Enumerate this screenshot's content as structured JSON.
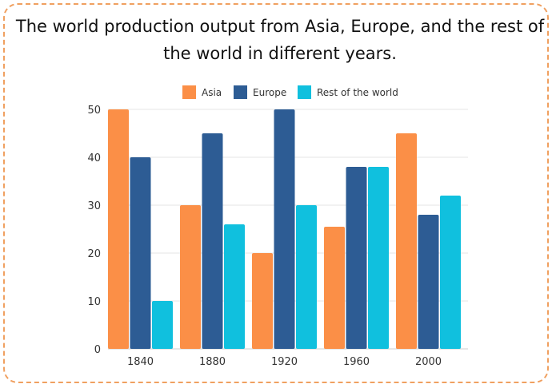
{
  "chart_data": {
    "type": "bar",
    "title": "The world production output from Asia, Europe, and the rest of the world in different years.",
    "xlabel": "",
    "ylabel": "",
    "categories": [
      "1840",
      "1880",
      "1920",
      "1960",
      "2000"
    ],
    "series": [
      {
        "name": "Asia",
        "color": "#fb8f47",
        "values": [
          50,
          30,
          20,
          25.5,
          45
        ]
      },
      {
        "name": "Europe",
        "color": "#2d5c94",
        "values": [
          40,
          45,
          50,
          38,
          28
        ]
      },
      {
        "name": "Rest of the world",
        "color": "#10c0de",
        "values": [
          10,
          26,
          30,
          38,
          32
        ]
      }
    ],
    "ylim": [
      0,
      50
    ],
    "yticks": [
      "0",
      "10",
      "20",
      "30",
      "40",
      "50"
    ],
    "grid": true,
    "legend": "top"
  }
}
